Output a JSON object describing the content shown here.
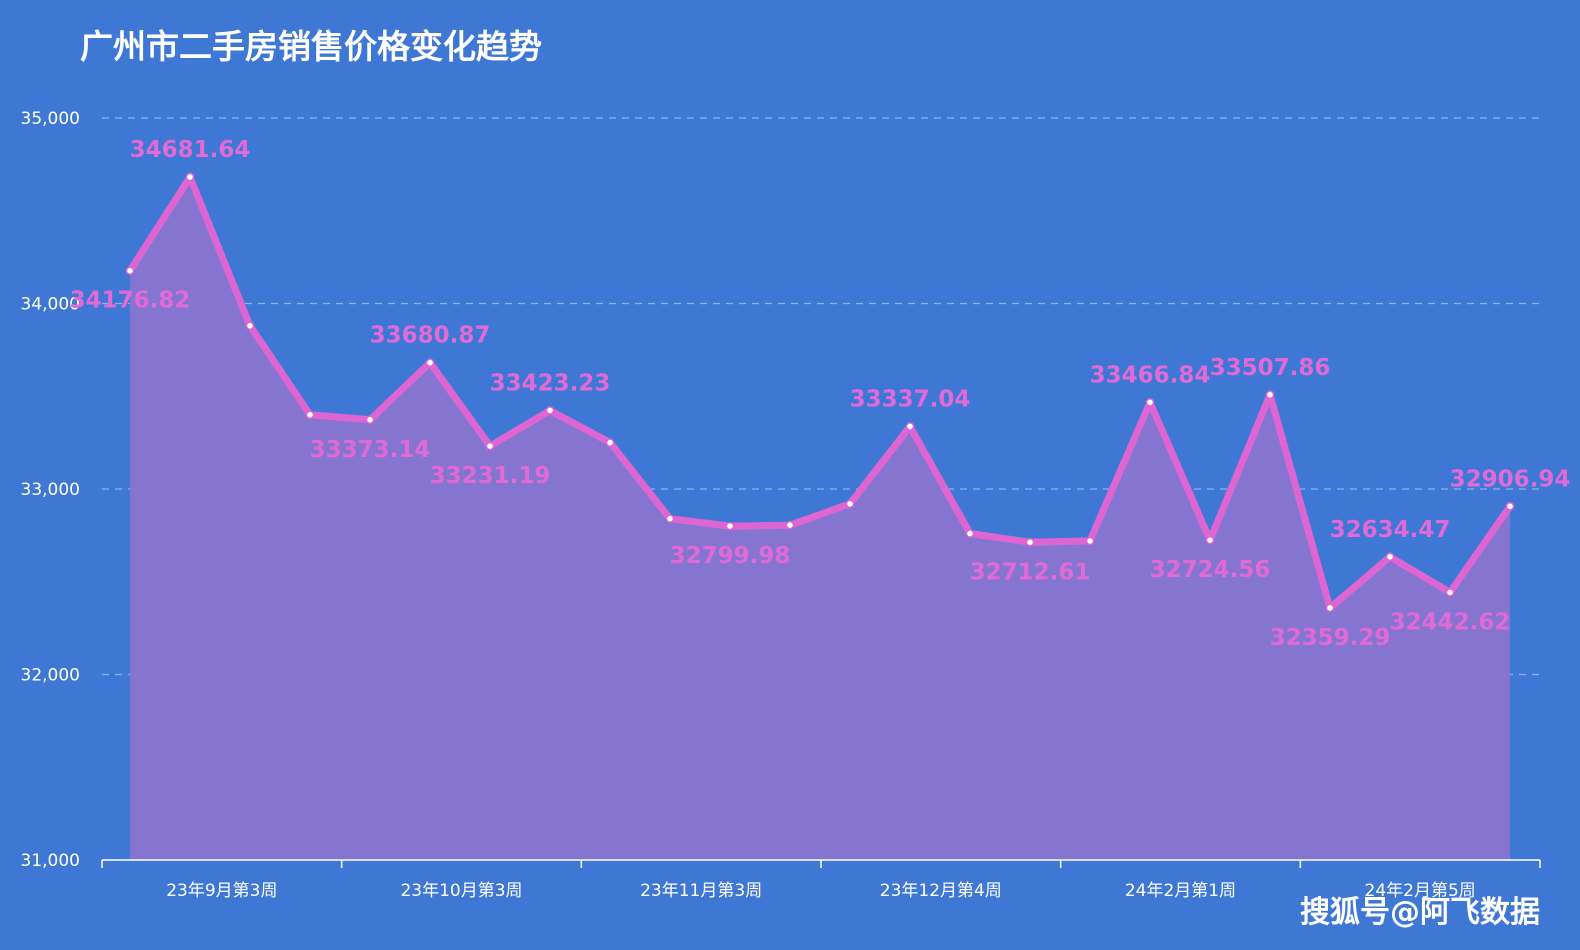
{
  "chart_data": {
    "type": "area",
    "title": "广州市二手房销售价格变化趋势",
    "xlabel": "",
    "ylabel": "",
    "ylim": [
      31000,
      35000
    ],
    "yticks": [
      "31,000",
      "32,000",
      "33,000",
      "34,000",
      "35,000"
    ],
    "grid": true,
    "x": [
      "23年9月第3周",
      "",
      "",
      "",
      "",
      "",
      "",
      "",
      "",
      "",
      "",
      "",
      "",
      "",
      "",
      "",
      "",
      "",
      "",
      "",
      "",
      "",
      "",
      ""
    ],
    "xtick_labels": [
      {
        "index": 0,
        "label": "23年9月第3周"
      },
      {
        "index": 4,
        "label": "23年10月第3周"
      },
      {
        "index": 8,
        "label": "23年11月第3周"
      },
      {
        "index": 12,
        "label": "23年12月第4周"
      },
      {
        "index": 16,
        "label": "24年2月第1周"
      },
      {
        "index": 20,
        "label": "24年2月第5周"
      }
    ],
    "values": [
      34176.82,
      34681.64,
      33880,
      33400,
      33373.14,
      33680.87,
      33231.19,
      33423.23,
      33250,
      32840,
      32799.98,
      32805,
      32920,
      33337.04,
      32760,
      32712.61,
      32720,
      33466.84,
      32724.56,
      33507.86,
      32359.29,
      32634.47,
      32442.62,
      32906.94
    ],
    "data_labels": [
      {
        "index": 0,
        "label": "34176.82",
        "pos": "below"
      },
      {
        "index": 1,
        "label": "34681.64",
        "pos": "above"
      },
      {
        "index": 4,
        "label": "33373.14",
        "pos": "below"
      },
      {
        "index": 5,
        "label": "33680.87",
        "pos": "above"
      },
      {
        "index": 6,
        "label": "33231.19",
        "pos": "below"
      },
      {
        "index": 7,
        "label": "33423.23",
        "pos": "above"
      },
      {
        "index": 10,
        "label": "32799.98",
        "pos": "below"
      },
      {
        "index": 13,
        "label": "33337.04",
        "pos": "above"
      },
      {
        "index": 15,
        "label": "32712.61",
        "pos": "below"
      },
      {
        "index": 17,
        "label": "33466.84",
        "pos": "above"
      },
      {
        "index": 18,
        "label": "32724.56",
        "pos": "below"
      },
      {
        "index": 19,
        "label": "33507.86",
        "pos": "above"
      },
      {
        "index": 20,
        "label": "32359.29",
        "pos": "below"
      },
      {
        "index": 21,
        "label": "32634.47",
        "pos": "above"
      },
      {
        "index": 22,
        "label": "32442.62",
        "pos": "below"
      },
      {
        "index": 23,
        "label": "32906.94",
        "pos": "above"
      }
    ],
    "colors": {
      "background": "#3f78d4",
      "line": "#dd66d2",
      "area": "#8675d0",
      "label": "#e06ad6",
      "grid": "#8fb0ea"
    }
  },
  "watermark": "搜狐号@阿飞数据"
}
